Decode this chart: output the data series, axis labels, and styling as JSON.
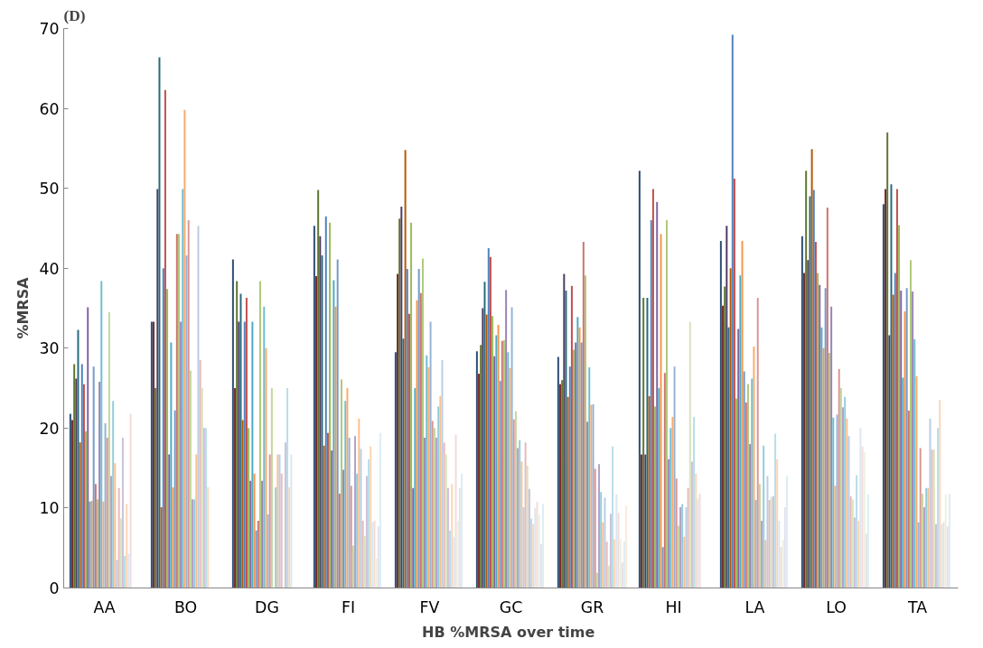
{
  "chart_data": {
    "type": "bar",
    "xlabel": "HB  %MRSA over time",
    "ylabel": "%MRSA",
    "annotations": [
      "(D)"
    ],
    "categories": [
      "AA",
      "BO",
      "DG",
      "FI",
      "FV",
      "GC",
      "GR",
      "HI",
      "LA",
      "LO",
      "TA"
    ],
    "ylim": [
      0,
      70
    ],
    "yticks": [
      0,
      10,
      20,
      30,
      40,
      50,
      60,
      70
    ],
    "series": [
      {
        "color": "#2c4d75",
        "values": [
          21.8,
          33.3,
          41.1,
          45.3,
          29.5,
          29.6,
          28.9,
          52.2,
          43.4,
          44,
          48
        ]
      },
      {
        "color": "#772c2a",
        "values": [
          21,
          33.3,
          25,
          39,
          39.3,
          26.8,
          25.5,
          16.7,
          35.3,
          39.4,
          49.9
        ]
      },
      {
        "color": "#5f7530",
        "values": [
          28,
          25,
          38.4,
          49.8,
          46.2,
          30.4,
          26,
          36.3,
          37.7,
          52.2,
          57
        ]
      },
      {
        "color": "#4d3b62",
        "values": [
          26.2,
          49.9,
          33.3,
          44,
          47.7,
          35,
          39.3,
          16.7,
          45.3,
          41,
          31.6
        ]
      },
      {
        "color": "#276a7c",
        "values": [
          32.3,
          66.4,
          36.8,
          41.6,
          31.2,
          38.3,
          37.2,
          36.3,
          32.6,
          49,
          50.5
        ]
      },
      {
        "color": "#b65708",
        "values": [
          18.2,
          10.1,
          21,
          17.8,
          54.8,
          34.2,
          23.9,
          24,
          40,
          54.9,
          36.7
        ]
      },
      {
        "color": "#4f81bd",
        "values": [
          28,
          40,
          33.3,
          46.5,
          39.9,
          42.5,
          27.7,
          46,
          69.2,
          49.8,
          39.4
        ]
      },
      {
        "color": "#c0504d",
        "values": [
          25.5,
          62.3,
          36.3,
          19.4,
          34.3,
          41.4,
          37.8,
          49.9,
          51.2,
          43.3,
          49.9
        ]
      },
      {
        "color": "#9bbb59",
        "values": [
          19.6,
          37.4,
          20,
          45.7,
          45.7,
          34,
          29.8,
          22.7,
          23.7,
          39.4,
          45.4
        ]
      },
      {
        "color": "#8064a2",
        "values": [
          35.1,
          16.7,
          13.4,
          17.2,
          12.5,
          29,
          30.7,
          48.3,
          32.4,
          37.9,
          37.2
        ]
      },
      {
        "color": "#4bacc6",
        "values": [
          10.8,
          30.7,
          33.3,
          38.5,
          25,
          31.6,
          33.9,
          25,
          39.1,
          32.6,
          26.3
        ]
      },
      {
        "color": "#f79646",
        "values": [
          10.9,
          12.6,
          14.3,
          35.2,
          36,
          32.9,
          32.6,
          44.3,
          43.4,
          30,
          34.6
        ]
      },
      {
        "color": "#729aca",
        "values": [
          27.7,
          22.2,
          7.2,
          41.1,
          39.9,
          25.9,
          30.7,
          5.1,
          27.1,
          37.5,
          37.5
        ]
      },
      {
        "color": "#cd7371",
        "values": [
          13,
          44.3,
          8.4,
          11.8,
          36.9,
          30.9,
          43.3,
          26.9,
          23.2,
          47.6,
          22.2
        ]
      },
      {
        "color": "#afc97a",
        "values": [
          11.1,
          44.3,
          38.4,
          26.1,
          41.2,
          31,
          39.1,
          46,
          25.5,
          29.4,
          41
        ]
      },
      {
        "color": "#9983b5",
        "values": [
          25.8,
          33.3,
          13.4,
          14.8,
          18.8,
          37.3,
          20.8,
          16.1,
          18,
          35.2,
          37.1
        ]
      },
      {
        "color": "#6fbdd1",
        "values": [
          38.4,
          49.9,
          35.2,
          23.4,
          29.1,
          29.5,
          27.6,
          20,
          26.2,
          21.3,
          31.1
        ]
      },
      {
        "color": "#f9ab6b",
        "values": [
          10.8,
          59.8,
          30,
          25,
          27.6,
          27.5,
          22.9,
          21.4,
          30.2,
          12.8,
          26.5
        ]
      },
      {
        "color": "#95b3d7",
        "values": [
          20.6,
          41.6,
          9.2,
          18.8,
          33.3,
          35.1,
          23,
          27.7,
          11,
          21.7,
          8.2
        ]
      },
      {
        "color": "#d99694",
        "values": [
          18.8,
          46,
          16.7,
          12.8,
          20.9,
          21.1,
          14.9,
          13.7,
          36.3,
          27.4,
          17.5
        ]
      },
      {
        "color": "#c3d69b",
        "values": [
          34.5,
          27.2,
          25,
          5.3,
          20,
          22.1,
          1.9,
          7.8,
          13,
          25,
          11.8
        ]
      },
      {
        "color": "#b3a2c7",
        "values": [
          14,
          11.1,
          null,
          19,
          18.8,
          17.5,
          15.5,
          10.1,
          8.4,
          22.6,
          10.1
        ]
      },
      {
        "color": "#93cddd",
        "values": [
          23.4,
          11.1,
          12.6,
          14.3,
          22.7,
          18.5,
          12,
          10.5,
          17.8,
          23.9,
          12.5
        ]
      },
      {
        "color": "#fac090",
        "values": [
          15.6,
          16.7,
          16.7,
          21.2,
          24,
          15.8,
          8.2,
          6.4,
          6,
          21.2,
          12.5
        ]
      },
      {
        "color": "#b9cde5",
        "values": [
          3.5,
          45.3,
          16.7,
          17.4,
          28.5,
          10.1,
          11.3,
          10.1,
          14,
          19,
          21.2
        ]
      },
      {
        "color": "#e6b9b8",
        "values": [
          12.5,
          28.5,
          14.3,
          8.4,
          18.2,
          18.2,
          5.8,
          12.5,
          11,
          11.5,
          17.3
        ]
      },
      {
        "color": "#d7e4bd",
        "values": [
          8.7,
          25,
          null,
          6.5,
          16.7,
          15.3,
          2.8,
          33.3,
          11.4,
          11.1,
          17.3
        ]
      },
      {
        "color": "#ccc1da",
        "values": [
          18.8,
          20,
          18.2,
          14,
          12.5,
          12.4,
          9.3,
          15.8,
          11.5,
          8.8,
          8
        ]
      },
      {
        "color": "#b7dee8",
        "values": [
          4,
          20,
          25,
          16.1,
          7.2,
          8.7,
          17.7,
          21.4,
          19.3,
          14.1,
          20
        ]
      },
      {
        "color": "#fcd5b5",
        "values": [
          10.5,
          12.6,
          12.6,
          17.7,
          13,
          8,
          6.1,
          14.3,
          16.1,
          8.4,
          23.5
        ]
      },
      {
        "color": "#dce6f2",
        "values": [
          4.3,
          null,
          16.7,
          8.2,
          6.4,
          10,
          11.7,
          11.2,
          8.4,
          20,
          8
        ]
      },
      {
        "color": "#f2dcdb",
        "values": [
          21.8,
          null,
          null,
          8.4,
          19.2,
          10.8,
          9.4,
          11.8,
          5.1,
          17.7,
          8.2
        ]
      },
      {
        "color": "#ebf1de",
        "values": [
          null,
          null,
          null,
          3.7,
          8.4,
          9.2,
          6.1,
          null,
          6,
          17,
          11.7
        ]
      },
      {
        "color": "#e6e0ec",
        "values": [
          null,
          null,
          null,
          7.7,
          12.5,
          5.5,
          3.2,
          null,
          10.1,
          6.8,
          7.7
        ]
      },
      {
        "color": "#dbeef4",
        "values": [
          null,
          null,
          null,
          19.4,
          14.3,
          10.5,
          5.8,
          null,
          14,
          11.7,
          11.8
        ]
      },
      {
        "color": "#fde9d9",
        "values": [
          null,
          null,
          null,
          null,
          null,
          null,
          10.3,
          null,
          null,
          null,
          null
        ]
      }
    ]
  }
}
